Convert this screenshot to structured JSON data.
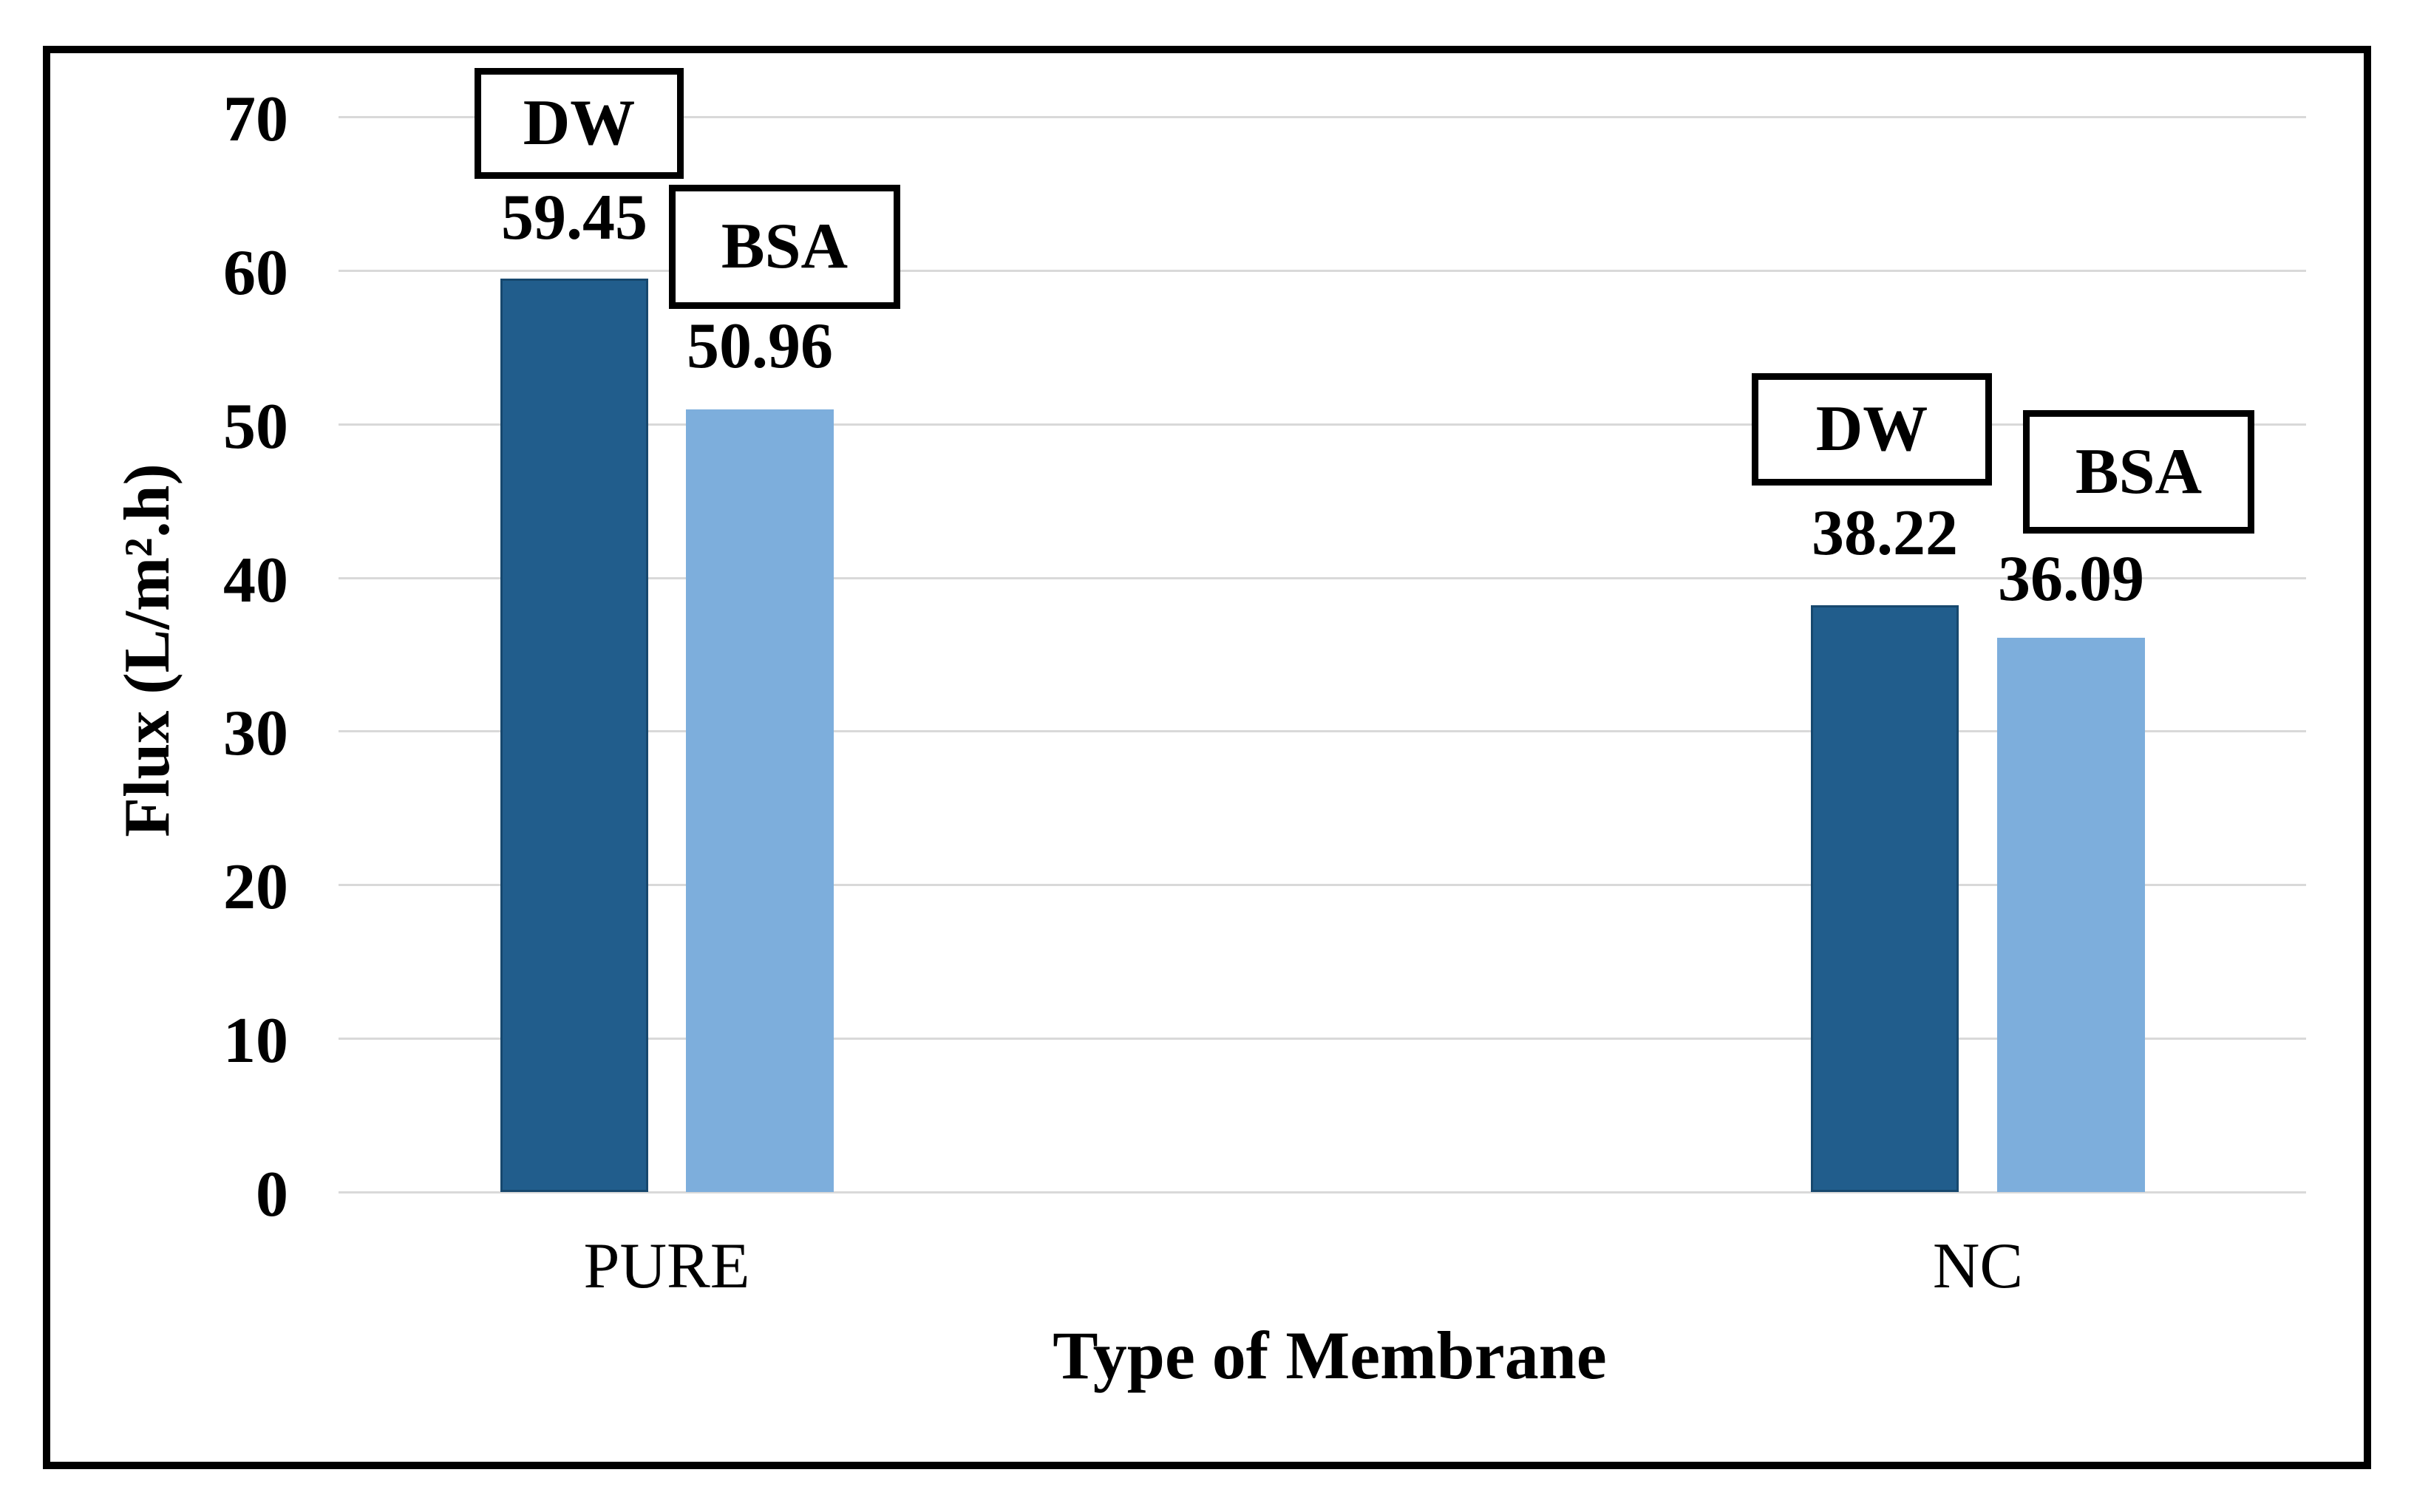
{
  "chart_data": {
    "type": "bar",
    "title": "",
    "xlabel": "Type of Membrane",
    "ylabel": "Flux (L/m².h)",
    "ylim": [
      0,
      70
    ],
    "ytick_interval": 10,
    "yticks": [
      0,
      10,
      20,
      30,
      40,
      50,
      60,
      70
    ],
    "categories": [
      "PURE",
      "NC"
    ],
    "series": [
      {
        "name": "DW",
        "color": "#215D8C",
        "values": [
          59.45,
          38.22
        ]
      },
      {
        "name": "BSA",
        "color": "#7DAEDC",
        "values": [
          50.96,
          36.09
        ]
      }
    ],
    "data_label_boxes": [
      {
        "category": "PURE",
        "series": "DW",
        "label": "DW",
        "value": 59.45
      },
      {
        "category": "PURE",
        "series": "BSA",
        "label": "BSA",
        "value": 50.96
      },
      {
        "category": "NC",
        "series": "DW",
        "label": "DW",
        "value": 38.22
      },
      {
        "category": "NC",
        "series": "BSA",
        "label": "BSA",
        "value": 36.09
      }
    ],
    "grid": true,
    "legend_position": "callout-boxes-above-bars",
    "colors": {
      "background": "#FFFFFF",
      "frame": "#000000",
      "gridline": "#D9D9D9",
      "dark_bar_border": "#17486E",
      "text": "#000000"
    }
  }
}
